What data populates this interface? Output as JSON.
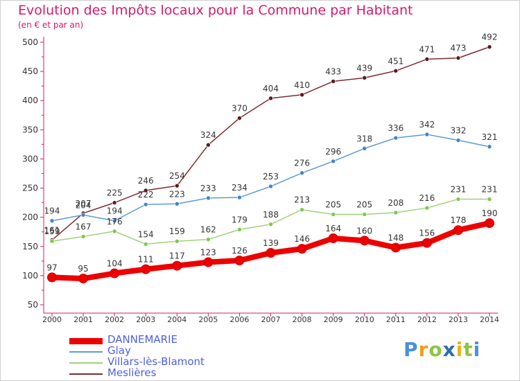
{
  "header": {
    "title": "Evolution des Impôts locaux pour la Commune par Habitant",
    "subtitle": "(en € et par an)"
  },
  "logo": {
    "text": "Proxiti",
    "letters": [
      {
        "ch": "P",
        "color": "#4a90d9"
      },
      {
        "ch": "r",
        "color": "#f39c12"
      },
      {
        "ch": "o",
        "color": "#8cc63f"
      },
      {
        "ch": "x",
        "color": "#2a6fb3"
      },
      {
        "ch": "i",
        "color": "#e8b417"
      },
      {
        "ch": "t",
        "color": "#8cc63f"
      },
      {
        "ch": "i",
        "color": "#4a90d9"
      }
    ]
  },
  "chart_data": {
    "type": "line",
    "x": [
      2000,
      2001,
      2002,
      2003,
      2004,
      2005,
      2006,
      2007,
      2008,
      2009,
      2010,
      2011,
      2012,
      2013,
      2014
    ],
    "ylim": [
      50,
      500
    ],
    "yticks": [
      50,
      100,
      150,
      200,
      250,
      300,
      350,
      400,
      450,
      500
    ],
    "grid": false,
    "legend_position": "bottom-left",
    "series": [
      {
        "name": "Meslières",
        "color": "#7b2a2f",
        "marker": "#5a1a1e",
        "values": [
          161,
          207,
          225,
          246,
          254,
          324,
          370,
          404,
          410,
          433,
          439,
          451,
          471,
          473,
          492
        ]
      },
      {
        "name": "Glay",
        "color": "#5b9bd0",
        "marker": "#3f86c6",
        "values": [
          194,
          204,
          194,
          222,
          223,
          233,
          234,
          253,
          276,
          296,
          318,
          336,
          342,
          332,
          321
        ]
      },
      {
        "name": "Villars-lès-Blamont",
        "color": "#9ed27a",
        "marker": "#7ec84c",
        "values": [
          159,
          167,
          176,
          154,
          159,
          162,
          179,
          188,
          213,
          205,
          205,
          208,
          216,
          231,
          231
        ]
      },
      {
        "name": "DANNEMARIE",
        "color": "#ee0000",
        "marker": "#ee0000",
        "values": [
          97,
          95,
          104,
          111,
          117,
          123,
          126,
          139,
          146,
          164,
          160,
          148,
          156,
          178,
          190
        ]
      }
    ]
  }
}
